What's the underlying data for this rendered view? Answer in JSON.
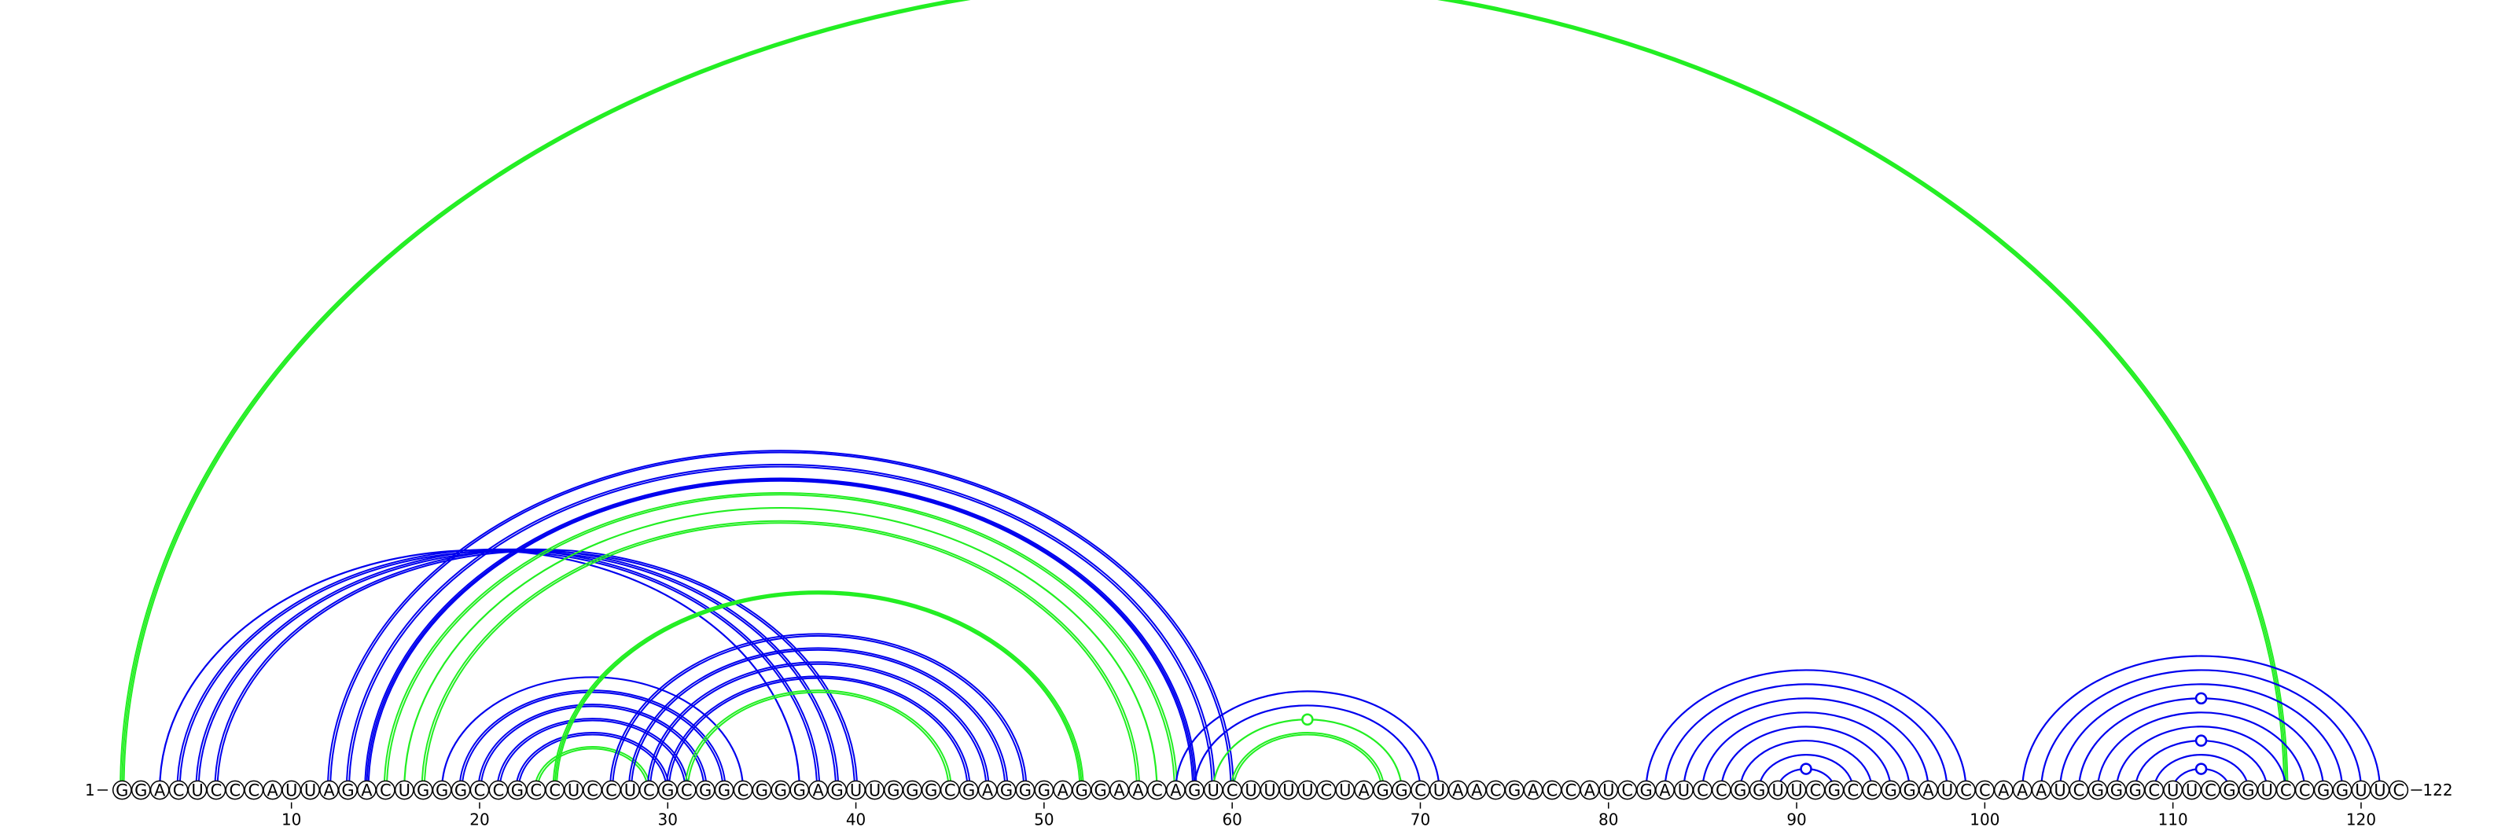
{
  "sequence": "GGACUCCCAUUAGACUGGGCCGCCUCCUCGCGGCGGGAGUUGGGCGAGGGAGGAACAGUCUUUUCUAGGCUAACGACCAUCGAUCCGGUUCGCCGGAUCCAAAUCGGGCUUCGGUCCGGUUC",
  "start_label": "1",
  "end_label": "122",
  "tick_labels": [
    "10",
    "20",
    "30",
    "40",
    "50",
    "60",
    "70",
    "80",
    "90",
    "100",
    "110",
    "120"
  ],
  "tick_positions": [
    10,
    20,
    30,
    40,
    50,
    60,
    70,
    80,
    90,
    100,
    110,
    120
  ],
  "colors": {
    "blue": "#0000ee",
    "green": "#22ee22",
    "line": "#000000"
  },
  "arcs": [
    {
      "i": 1,
      "j": 116,
      "color": "green",
      "lines": 3
    },
    {
      "i": 3,
      "j": 37,
      "color": "blue",
      "lines": 1
    },
    {
      "i": 4,
      "j": 38,
      "color": "blue",
      "lines": 2
    },
    {
      "i": 5,
      "j": 39,
      "color": "blue",
      "lines": 2
    },
    {
      "i": 6,
      "j": 40,
      "color": "blue",
      "lines": 2
    },
    {
      "i": 12,
      "j": 60,
      "color": "blue",
      "lines": 2
    },
    {
      "i": 13,
      "j": 59,
      "color": "blue",
      "lines": 2
    },
    {
      "i": 14,
      "j": 58,
      "color": "blue",
      "lines": 3
    },
    {
      "i": 15,
      "j": 57,
      "color": "green",
      "lines": 2
    },
    {
      "i": 16,
      "j": 56,
      "color": "green",
      "lines": 1
    },
    {
      "i": 17,
      "j": 55,
      "color": "green",
      "lines": 2
    },
    {
      "i": 18,
      "j": 34,
      "color": "blue",
      "lines": 1
    },
    {
      "i": 19,
      "j": 33,
      "color": "blue",
      "lines": 2
    },
    {
      "i": 20,
      "j": 32,
      "color": "blue",
      "lines": 2
    },
    {
      "i": 21,
      "j": 31,
      "color": "blue",
      "lines": 2
    },
    {
      "i": 22,
      "j": 30,
      "color": "blue",
      "lines": 2
    },
    {
      "i": 23,
      "j": 29,
      "color": "green",
      "lines": 2
    },
    {
      "i": 24,
      "j": 52,
      "color": "green",
      "lines": 3
    },
    {
      "i": 27,
      "j": 49,
      "color": "blue",
      "lines": 2
    },
    {
      "i": 28,
      "j": 48,
      "color": "blue",
      "lines": 2
    },
    {
      "i": 29,
      "j": 47,
      "color": "blue",
      "lines": 2
    },
    {
      "i": 30,
      "j": 46,
      "color": "blue",
      "lines": 2
    },
    {
      "i": 31,
      "j": 45,
      "color": "green",
      "lines": 2
    },
    {
      "i": 57,
      "j": 71,
      "color": "blue",
      "lines": 1
    },
    {
      "i": 58,
      "j": 70,
      "color": "blue",
      "lines": 1
    },
    {
      "i": 59,
      "j": 69,
      "color": "green",
      "lines": 1
    },
    {
      "i": 60,
      "j": 68,
      "color": "green",
      "lines": 2
    },
    {
      "i": 82,
      "j": 99,
      "color": "blue",
      "lines": 1
    },
    {
      "i": 83,
      "j": 98,
      "color": "blue",
      "lines": 1
    },
    {
      "i": 84,
      "j": 97,
      "color": "blue",
      "lines": 1
    },
    {
      "i": 85,
      "j": 96,
      "color": "blue",
      "lines": 1
    },
    {
      "i": 86,
      "j": 95,
      "color": "blue",
      "lines": 1
    },
    {
      "i": 87,
      "j": 94,
      "color": "blue",
      "lines": 1
    },
    {
      "i": 88,
      "j": 93,
      "color": "blue",
      "lines": 1
    },
    {
      "i": 89,
      "j": 92,
      "color": "blue",
      "lines": 1
    },
    {
      "i": 102,
      "j": 121,
      "color": "blue",
      "lines": 1
    },
    {
      "i": 103,
      "j": 120,
      "color": "blue",
      "lines": 1
    },
    {
      "i": 104,
      "j": 119,
      "color": "blue",
      "lines": 1
    },
    {
      "i": 105,
      "j": 118,
      "color": "blue",
      "lines": 1
    },
    {
      "i": 106,
      "j": 117,
      "color": "blue",
      "lines": 1
    },
    {
      "i": 107,
      "j": 116,
      "color": "blue",
      "lines": 1
    },
    {
      "i": 108,
      "j": 115,
      "color": "blue",
      "lines": 1
    },
    {
      "i": 109,
      "j": 114,
      "color": "blue",
      "lines": 1
    },
    {
      "i": 110,
      "j": 113,
      "color": "blue",
      "lines": 1
    }
  ],
  "markers": [
    {
      "x": 64,
      "arc": 59,
      "color": "green"
    },
    {
      "x": 90.5,
      "arc": 89,
      "color": "blue"
    },
    {
      "x": 111.5,
      "arc": 110,
      "color": "blue"
    },
    {
      "x": 111.5,
      "arc": 108,
      "color": "blue"
    },
    {
      "x": 111.5,
      "arc": 105,
      "color": "blue"
    }
  ]
}
